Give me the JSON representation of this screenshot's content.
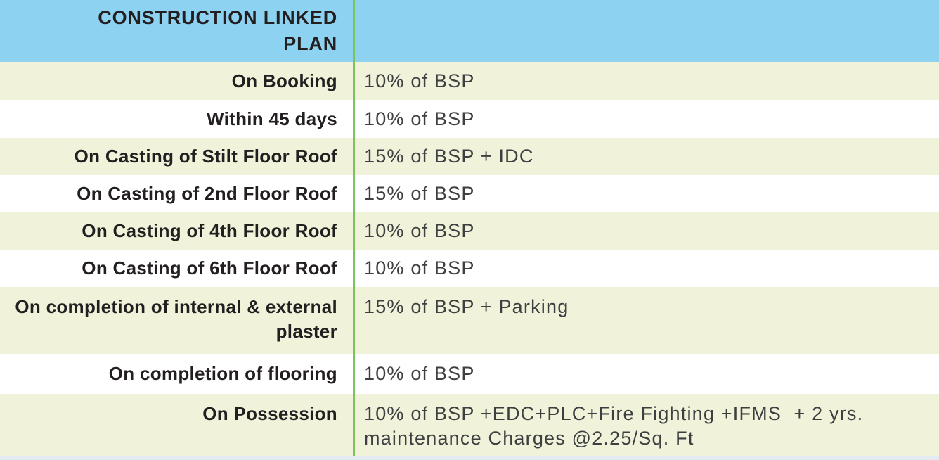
{
  "colors": {
    "header_bg": "#8dd3f1",
    "row_alt_bg": "#f0f2da",
    "row_bg": "#ffffff",
    "divider_green": "#7cc25e",
    "milestone_text": "#231f20",
    "payment_text": "#3e3f40",
    "bottom_border": "#e4ebf0"
  },
  "table": {
    "title": "CONSTRUCTION LINKED PLAN",
    "rows": [
      {
        "milestone": "On Booking",
        "payment": "10% of BSP"
      },
      {
        "milestone": "Within 45 days",
        "payment": "10% of BSP"
      },
      {
        "milestone": "On Casting of Stilt Floor Roof",
        "payment": "15% of BSP + IDC"
      },
      {
        "milestone": "On Casting of 2nd Floor Roof",
        "payment": "15% of BSP"
      },
      {
        "milestone": "On Casting of 4th Floor Roof",
        "payment": "10% of BSP"
      },
      {
        "milestone": "On Casting of 6th Floor Roof",
        "payment": "10% of BSP"
      },
      {
        "milestone": "On completion of internal & external plaster",
        "payment": "15% of BSP + Parking"
      },
      {
        "milestone": "On completion of flooring",
        "payment": "10% of BSP"
      },
      {
        "milestone": "On Possession",
        "payment": "10% of BSP +EDC+PLC+Fire Fighting +IFMS  + 2 yrs. maintenance Charges @2.25/Sq. Ft"
      }
    ]
  }
}
